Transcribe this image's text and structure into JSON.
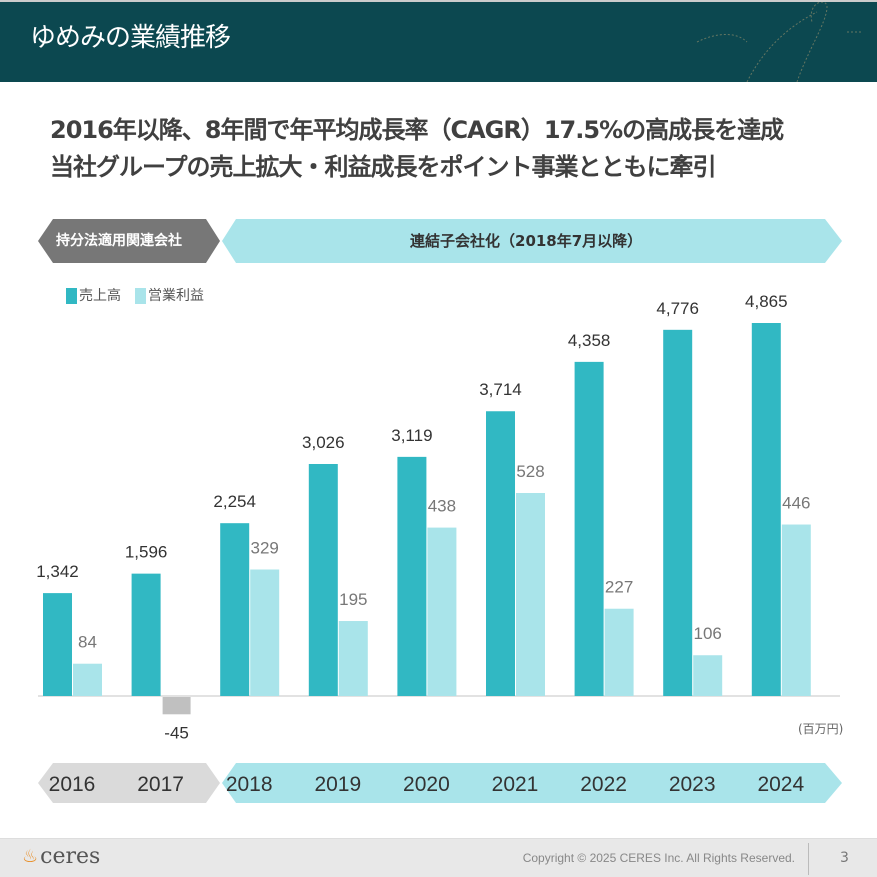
{
  "header": {
    "title": "ゆめみの業績推移"
  },
  "headline": {
    "line1": "2016年以降、8年間で年平均成長率（CAGR）17.5%の高成長を達成",
    "line2": "当社グループの売上拡大・利益成長をポイント事業とともに牽引"
  },
  "banner": {
    "left": "持分法適用関連会社",
    "right": "連結子会社化（2018年7月以降）"
  },
  "footer": {
    "logo": "ceres",
    "copyright": "Copyright © 2025 CERES Inc. All Rights Reserved.",
    "page": "3"
  },
  "chart_data": {
    "type": "bar",
    "categories": [
      "2016",
      "2017",
      "2018",
      "2019",
      "2020",
      "2021",
      "2022",
      "2023",
      "2024"
    ],
    "unit": "(百万円)",
    "series": [
      {
        "name": "売上高",
        "color": "#31b8c3",
        "values": [
          1342,
          1596,
          2254,
          3026,
          3119,
          3714,
          4358,
          4776,
          4865
        ],
        "labels": [
          "1,342",
          "1,596",
          "2,254",
          "3,026",
          "3,119",
          "3,714",
          "4,358",
          "4,776",
          "4,865"
        ]
      },
      {
        "name": "営業利益",
        "color": "#a9e4ea",
        "negative_color": "#c0c0c0",
        "values": [
          84,
          -45,
          329,
          195,
          438,
          528,
          227,
          106,
          446
        ],
        "labels": [
          "84",
          "-45",
          "329",
          "195",
          "438",
          "528",
          "227",
          "106",
          "446"
        ]
      }
    ],
    "legend": "top-left",
    "grid": false
  }
}
